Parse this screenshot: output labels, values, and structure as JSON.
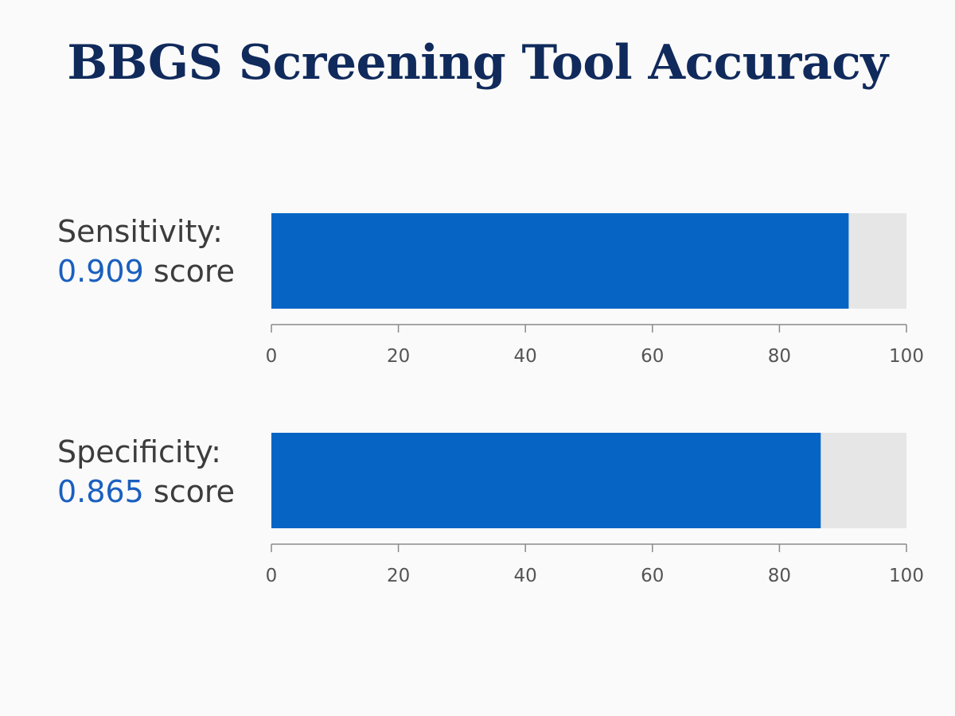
{
  "title": "BBGS Screening Tool Accuracy",
  "colors": {
    "bar": "#0564c4",
    "track": "#e6e6e6",
    "axis": "#8a8a8a",
    "value_text": "#1a5fbf",
    "title": "#102a5c"
  },
  "chart_data": [
    {
      "type": "bar",
      "orientation": "horizontal",
      "categories": [
        "Sensitivity:"
      ],
      "values": [
        0.909
      ],
      "value_label": "0.909",
      "unit_label": "score",
      "xlim": [
        0,
        100
      ],
      "xticks": [
        "0",
        "20",
        "40",
        "60",
        "80",
        "100"
      ],
      "tick_values": [
        0,
        20,
        40,
        60,
        80,
        100
      ],
      "scale_factor": 100,
      "grid": false
    },
    {
      "type": "bar",
      "orientation": "horizontal",
      "categories": [
        "Specificity:"
      ],
      "values": [
        0.865
      ],
      "value_label": "0.865",
      "unit_label": "score",
      "xlim": [
        0,
        100
      ],
      "xticks": [
        "0",
        "20",
        "40",
        "60",
        "80",
        "100"
      ],
      "tick_values": [
        0,
        20,
        40,
        60,
        80,
        100
      ],
      "scale_factor": 100,
      "grid": false
    }
  ]
}
